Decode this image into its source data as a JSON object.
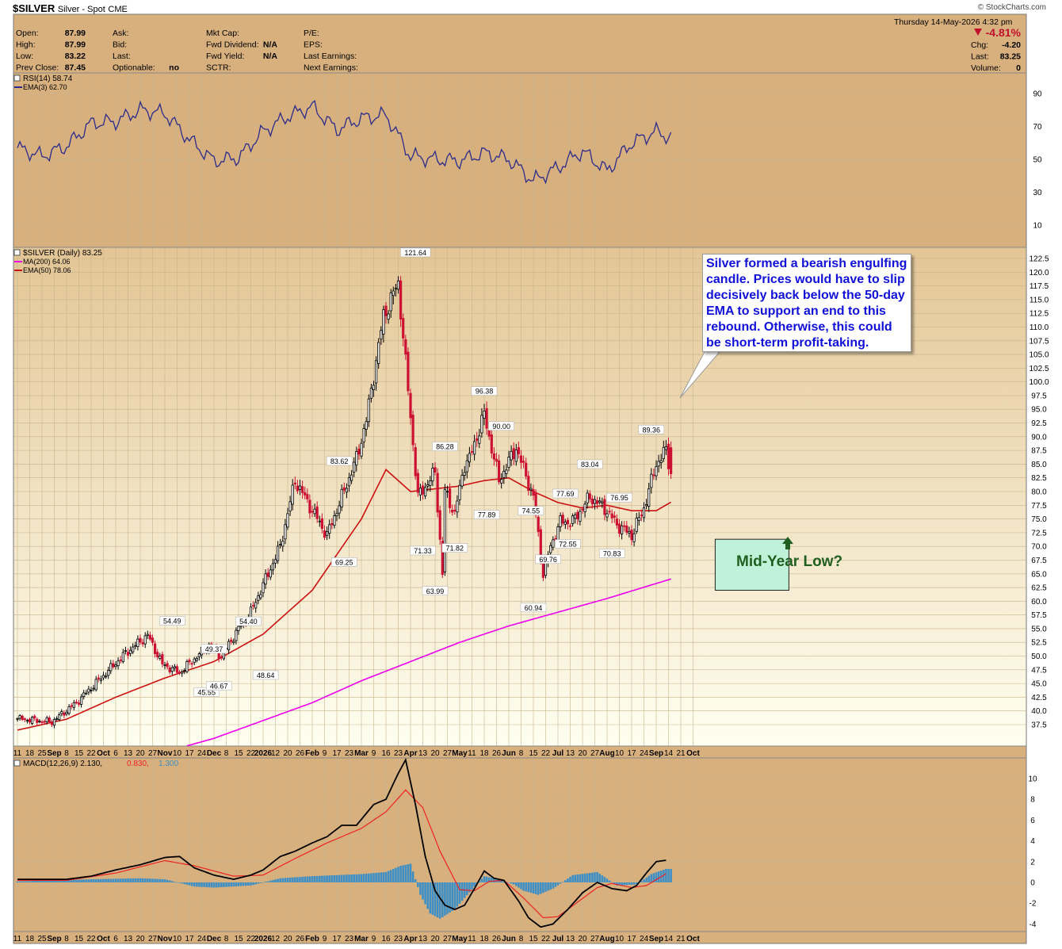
{
  "header": {
    "symbol": "$SILVER",
    "name": "Silver - Spot",
    "exchange": "CME",
    "brand": "© StockCharts.com",
    "date": "Thursday  14-May-2026  4:32 pm",
    "quote_left": [
      {
        "label": "Open:",
        "value": "87.99"
      },
      {
        "label": "High:",
        "value": "87.99"
      },
      {
        "label": "Low:",
        "value": "83.22"
      },
      {
        "label": "Prev Close:",
        "value": "87.45"
      }
    ],
    "quote_mid1": [
      {
        "label": "Ask:",
        "value": ""
      },
      {
        "label": "Bid:",
        "value": ""
      },
      {
        "label": "Last:",
        "value": ""
      },
      {
        "label": "Optionable:",
        "value": "no"
      }
    ],
    "quote_mid2": [
      {
        "label": "Mkt Cap:",
        "value": ""
      },
      {
        "label": "Fwd Dividend:",
        "value": "N/A"
      },
      {
        "label": "Fwd Yield:",
        "value": "N/A"
      },
      {
        "label": "SCTR:",
        "value": ""
      }
    ],
    "quote_mid3": [
      {
        "label": "P/E:",
        "value": ""
      },
      {
        "label": "EPS:",
        "value": ""
      },
      {
        "label": "Last Earnings:",
        "value": ""
      },
      {
        "label": "Next Earnings:",
        "value": ""
      }
    ],
    "change_pct": "-4.81%",
    "quote_right": [
      {
        "label": "Chg:",
        "value": "-4.20"
      },
      {
        "label": "Last:",
        "value": "83.25"
      },
      {
        "label": "Volume:",
        "value": "0"
      }
    ]
  },
  "colors": {
    "panel_bg": "#d8b07e",
    "price_bg_top": "#e3c595",
    "price_bg_bottom": "#fffff0",
    "up_candle": "#000000",
    "down_candle": "#cc1133",
    "ema50": "#cc1111",
    "ma200": "#ee00ee",
    "rsi_line": "#2b2b8c",
    "macd_line": "#000000",
    "signal_line": "#ee2222",
    "histogram": "#3d8fc6",
    "callout_text": "#1010d8",
    "box_fill": "#bff2d8",
    "arrow": "#1f5f1f"
  },
  "annotations": {
    "callout": "Silver formed a bearish engulfing candle. Prices would have to slip decisively back below the 50-day EMA to support an end to this rebound. Otherwise, this could be short-term profit-taking.",
    "mid_year": "Mid-Year Low?"
  },
  "chart_data": [
    {
      "type": "line",
      "panel": "rsi",
      "legend": [
        "RSI(14) 58.74",
        "EMA(3) 62.70"
      ],
      "ylim": [
        0,
        100
      ],
      "yticks": [
        10,
        30,
        50,
        70,
        90
      ],
      "x_index": [
        0,
        10,
        20,
        30,
        40,
        50,
        60,
        70,
        80,
        90,
        100,
        110,
        120,
        130,
        140,
        150,
        160,
        170,
        180,
        190,
        200,
        210,
        220,
        230,
        240,
        250,
        260,
        266
      ],
      "values": [
        57,
        52,
        58,
        72,
        73,
        80,
        78,
        62,
        49,
        51,
        67,
        76,
        82,
        68,
        75,
        77,
        52,
        50,
        49,
        54,
        50,
        37,
        45,
        55,
        43,
        60,
        67,
        63
      ]
    },
    {
      "type": "candlestick",
      "panel": "price",
      "title": "$SILVER (Daily) 83.25",
      "legend": [
        {
          "name": "MA(200) 64.06",
          "color": "#ee00ee"
        },
        {
          "name": "EMA(50) 78.06",
          "color": "#cc1111"
        }
      ],
      "ylim": [
        35,
        123.5
      ],
      "yticks": [
        "37.5",
        "40.0",
        "42.5",
        "45.0",
        "47.5",
        "50.0",
        "52.5",
        "55.0",
        "57.5",
        "60.0",
        "62.5",
        "65.0",
        "67.5",
        "70.0",
        "72.5",
        "75.0",
        "77.5",
        "80.0",
        "82.5",
        "85.0",
        "87.5",
        "90.0",
        "92.5",
        "95.0",
        "97.5",
        "100.0",
        "102.5",
        "105.0",
        "107.5",
        "110.0",
        "112.5",
        "115.0",
        "117.5",
        "120.0",
        "122.5"
      ],
      "close_anchors": {
        "x_index": [
          0,
          14,
          24,
          44,
          53,
          59,
          66,
          78,
          83,
          90,
          95,
          100,
          107,
          113,
          126,
          138,
          142,
          149,
          155,
          163,
          170,
          173,
          174,
          178,
          182,
          184,
          190,
          196,
          203,
          210,
          214,
          217,
          221,
          226,
          233,
          239,
          244,
          250,
          255,
          260,
          264,
          266
        ],
        "values": [
          38.6,
          38.0,
          41.5,
          50.5,
          53.8,
          48.5,
          47.0,
          52.0,
          50.0,
          55.0,
          58.0,
          63.0,
          70.0,
          82.0,
          72.0,
          86.0,
          93.0,
          112.0,
          118.0,
          79.0,
          83.5,
          65.0,
          80.0,
          76.0,
          85.0,
          86.0,
          94.0,
          82.0,
          88.0,
          79.0,
          65.0,
          70.0,
          74.5,
          74.5,
          79.0,
          77.0,
          74.0,
          72.0,
          77.0,
          85.0,
          87.5,
          83.25
        ]
      },
      "ohlc_last": {
        "open": 87.99,
        "high": 87.99,
        "low": 83.22,
        "close": 83.25
      },
      "ema50": {
        "x_index": [
          0,
          20,
          40,
          60,
          80,
          100,
          120,
          140,
          150,
          160,
          170,
          180,
          190,
          200,
          210,
          220,
          230,
          240,
          250,
          260,
          266
        ],
        "values": [
          36.5,
          38.5,
          42.5,
          46.0,
          49.0,
          54.0,
          62.0,
          75.0,
          84.0,
          80.0,
          80.5,
          81.0,
          82.0,
          82.5,
          80.0,
          78.0,
          77.0,
          77.5,
          76.5,
          76.5,
          78.06
        ]
      },
      "ma200": {
        "x_index": [
          0,
          40,
          80,
          120,
          140,
          160,
          180,
          200,
          220,
          240,
          266
        ],
        "values": [
          26.0,
          30.0,
          35.0,
          41.5,
          45.5,
          49.0,
          52.5,
          55.5,
          58.0,
          60.5,
          64.06
        ]
      },
      "price_labels": [
        {
          "x_index": 63,
          "value": "54.49",
          "pos": "above"
        },
        {
          "x_index": 80,
          "value": "49.37",
          "pos": "above"
        },
        {
          "x_index": 77,
          "value": "45.55",
          "pos": "below"
        },
        {
          "x_index": 82,
          "value": "46.67",
          "pos": "below"
        },
        {
          "x_index": 94,
          "value": "54.40",
          "pos": "above"
        },
        {
          "x_index": 101,
          "value": "48.64",
          "pos": "below"
        },
        {
          "x_index": 131,
          "value": "83.62",
          "pos": "above"
        },
        {
          "x_index": 133,
          "value": "69.25",
          "pos": "below"
        },
        {
          "x_index": 162,
          "value": "121.64",
          "pos": "above"
        },
        {
          "x_index": 165,
          "value": "71.33",
          "pos": "below"
        },
        {
          "x_index": 170,
          "value": "63.99",
          "pos": "below"
        },
        {
          "x_index": 174,
          "value": "86.28",
          "pos": "above"
        },
        {
          "x_index": 178,
          "value": "71.82",
          "pos": "below"
        },
        {
          "x_index": 190,
          "value": "96.38",
          "pos": "above"
        },
        {
          "x_index": 191,
          "value": "77.89",
          "pos": "below"
        },
        {
          "x_index": 197,
          "value": "90.00",
          "pos": "above"
        },
        {
          "x_index": 209,
          "value": "74.55",
          "pos": "above"
        },
        {
          "x_index": 210,
          "value": "60.94",
          "pos": "below"
        },
        {
          "x_index": 216,
          "value": "69.76",
          "pos": "below"
        },
        {
          "x_index": 223,
          "value": "77.69",
          "pos": "above"
        },
        {
          "x_index": 224,
          "value": "72.55",
          "pos": "below"
        },
        {
          "x_index": 233,
          "value": "83.04",
          "pos": "above"
        },
        {
          "x_index": 245,
          "value": "76.95",
          "pos": "above"
        },
        {
          "x_index": 242,
          "value": "70.83",
          "pos": "below"
        },
        {
          "x_index": 258,
          "value": "89.36",
          "pos": "above"
        }
      ],
      "target_zone": {
        "x_start_index": 284,
        "x_end_index": 314,
        "low": 62.0,
        "high": 71.3
      }
    },
    {
      "type": "line",
      "panel": "macd",
      "legend": [
        "MACD(12,26,9)",
        "2.130",
        "0.830",
        "1.300"
      ],
      "ylim": [
        -4.8,
        13
      ],
      "yticks": [
        -4,
        -2,
        0,
        2,
        4,
        6,
        8,
        10
      ],
      "macd": {
        "x_index": [
          0,
          20,
          30,
          40,
          50,
          60,
          66,
          72,
          80,
          88,
          95,
          100,
          107,
          113,
          120,
          126,
          132,
          138,
          145,
          150,
          155,
          158,
          162,
          166,
          170,
          174,
          178,
          182,
          186,
          190,
          194,
          198,
          204,
          208,
          213,
          218,
          224,
          230,
          236,
          242,
          248,
          252,
          256,
          260,
          264
        ],
        "values": [
          0.3,
          0.3,
          0.6,
          1.2,
          1.7,
          2.4,
          2.5,
          1.4,
          0.7,
          0.3,
          0.7,
          1.2,
          2.5,
          3.0,
          3.8,
          4.4,
          5.5,
          5.5,
          7.5,
          8.0,
          10.5,
          11.8,
          7.5,
          2.5,
          -0.8,
          -2.2,
          -2.6,
          -2.2,
          -0.6,
          1.1,
          0.4,
          0.2,
          -1.8,
          -3.4,
          -4.3,
          -4.0,
          -2.6,
          -1.0,
          0.0,
          -0.6,
          -0.8,
          -0.3,
          0.9,
          2.0,
          2.13
        ]
      },
      "signal": {
        "x_index": [
          0,
          20,
          40,
          60,
          72,
          88,
          100,
          113,
          126,
          140,
          150,
          158,
          165,
          172,
          180,
          186,
          192,
          198,
          206,
          214,
          220,
          228,
          236,
          242,
          250,
          256,
          264
        ],
        "values": [
          0.2,
          0.2,
          0.9,
          2.1,
          1.6,
          0.6,
          0.7,
          2.3,
          3.8,
          5.2,
          6.8,
          8.9,
          7.2,
          3.0,
          -0.7,
          -0.8,
          0.1,
          0.2,
          -1.5,
          -3.4,
          -3.3,
          -1.9,
          -0.5,
          -0.1,
          -0.5,
          -0.3,
          0.83
        ]
      },
      "histogram_anchors": {
        "x_index": [
          0,
          30,
          50,
          60,
          72,
          80,
          95,
          107,
          120,
          140,
          150,
          156,
          160,
          164,
          168,
          172,
          178,
          182,
          186,
          190,
          196,
          202,
          206,
          212,
          218,
          226,
          236,
          244,
          252,
          258,
          264
        ],
        "values": [
          0.1,
          0.3,
          0.4,
          0.3,
          -0.4,
          -0.5,
          -0.3,
          0.4,
          0.6,
          0.8,
          1.0,
          1.6,
          1.8,
          -1.2,
          -3.0,
          -3.5,
          -2.6,
          -1.5,
          -0.4,
          0.6,
          0.3,
          -0.2,
          -0.8,
          -1.2,
          -0.6,
          0.7,
          1.0,
          -0.3,
          -0.2,
          0.8,
          1.3
        ]
      }
    }
  ],
  "x_axis": {
    "labels": [
      {
        "x_index": 0,
        "text": "11"
      },
      {
        "x_index": 5,
        "text": "18"
      },
      {
        "x_index": 10,
        "text": "25"
      },
      {
        "x_index": 15,
        "text": "Sep",
        "bold": true
      },
      {
        "x_index": 20,
        "text": "8"
      },
      {
        "x_index": 25,
        "text": "15"
      },
      {
        "x_index": 30,
        "text": "22"
      },
      {
        "x_index": 35,
        "text": "Oct",
        "bold": true
      },
      {
        "x_index": 40,
        "text": "6"
      },
      {
        "x_index": 45,
        "text": "13"
      },
      {
        "x_index": 50,
        "text": "20"
      },
      {
        "x_index": 55,
        "text": "27"
      },
      {
        "x_index": 60,
        "text": "Nov",
        "bold": true
      },
      {
        "x_index": 65,
        "text": "10"
      },
      {
        "x_index": 70,
        "text": "17"
      },
      {
        "x_index": 75,
        "text": "24"
      },
      {
        "x_index": 80,
        "text": "Dec",
        "bold": true
      },
      {
        "x_index": 85,
        "text": "8"
      },
      {
        "x_index": 90,
        "text": "15"
      },
      {
        "x_index": 95,
        "text": "22"
      },
      {
        "x_index": 100,
        "text": "2026",
        "bold": true
      },
      {
        "x_index": 105,
        "text": "12"
      },
      {
        "x_index": 110,
        "text": "20"
      },
      {
        "x_index": 115,
        "text": "26"
      },
      {
        "x_index": 120,
        "text": "Feb",
        "bold": true
      },
      {
        "x_index": 125,
        "text": "9"
      },
      {
        "x_index": 130,
        "text": "17"
      },
      {
        "x_index": 135,
        "text": "23"
      },
      {
        "x_index": 140,
        "text": "Mar",
        "bold": true
      },
      {
        "x_index": 145,
        "text": "9"
      },
      {
        "x_index": 150,
        "text": "16"
      },
      {
        "x_index": 155,
        "text": "23"
      },
      {
        "x_index": 160,
        "text": "Apr",
        "bold": true
      },
      {
        "x_index": 165,
        "text": "13"
      },
      {
        "x_index": 170,
        "text": "20"
      },
      {
        "x_index": 175,
        "text": "27"
      },
      {
        "x_index": 180,
        "text": "May",
        "bold": true
      },
      {
        "x_index": 185,
        "text": "11"
      },
      {
        "x_index": 190,
        "text": "18"
      },
      {
        "x_index": 195,
        "text": "26"
      },
      {
        "x_index": 200,
        "text": "Jun",
        "bold": true
      },
      {
        "x_index": 205,
        "text": "8"
      },
      {
        "x_index": 210,
        "text": "15"
      },
      {
        "x_index": 215,
        "text": "22"
      },
      {
        "x_index": 220,
        "text": "Jul",
        "bold": true
      },
      {
        "x_index": 225,
        "text": "13"
      },
      {
        "x_index": 230,
        "text": "20"
      },
      {
        "x_index": 235,
        "text": "27"
      },
      {
        "x_index": 240,
        "text": "Aug",
        "bold": true
      },
      {
        "x_index": 245,
        "text": "10"
      },
      {
        "x_index": 250,
        "text": "17"
      },
      {
        "x_index": 255,
        "text": "24"
      },
      {
        "x_index": 260,
        "text": "Sep",
        "bold": true
      },
      {
        "x_index": 265,
        "text": "14"
      },
      {
        "x_index": 270,
        "text": "21"
      },
      {
        "x_index": 275,
        "text": "Oct",
        "bold": true
      }
    ]
  }
}
